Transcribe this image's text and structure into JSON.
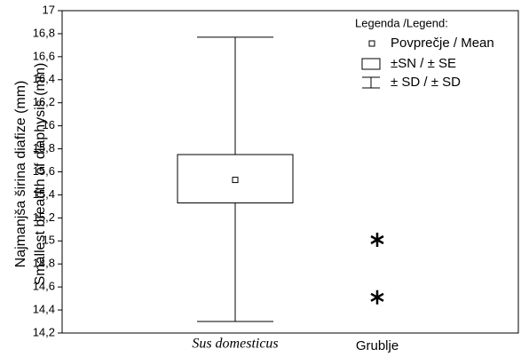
{
  "chart_data": {
    "type": "box",
    "y_label": [
      "Najmanjša širina diafize (mm)",
      "Smallest breadth of diaphysis (mm)"
    ],
    "categories": [
      "Sus domesticus",
      "Grublje"
    ],
    "mean": 15.53,
    "se": [
      15.33,
      15.75
    ],
    "sd": [
      14.3,
      16.77
    ],
    "outliers": [
      15.01,
      14.51
    ],
    "legend_title": "Legenda /Legend:",
    "legend": [
      "Povprečje / Mean",
      "±SN / ± SE",
      "± SD / ± SD"
    ],
    "ylim": [
      14.2,
      17
    ],
    "yticks": [
      {
        "value": 14.2,
        "label": "14,2"
      },
      {
        "value": 14.4,
        "label": "14,4"
      },
      {
        "value": 14.6,
        "label": "14,6"
      },
      {
        "value": 14.8,
        "label": "14,8"
      },
      15,
      {
        "value": 15.2,
        "label": "15,2"
      },
      {
        "value": 15.4,
        "label": "15,4"
      },
      {
        "value": 15.6,
        "label": "15,6"
      },
      {
        "value": 15.8,
        "label": "15,8"
      },
      16,
      {
        "value": 16.2,
        "label": "16,2"
      },
      {
        "value": 16.4,
        "label": "16,4"
      },
      {
        "value": 16.6,
        "label": "16,6"
      },
      {
        "value": 16.8,
        "label": "16,8"
      },
      17
    ],
    "color": "#000000"
  }
}
